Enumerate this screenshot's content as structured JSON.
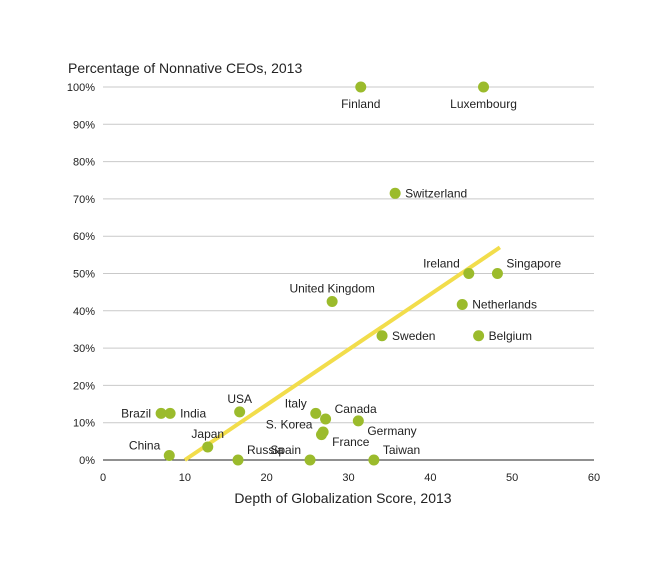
{
  "chart_data": {
    "type": "scatter",
    "title": "Percentage of Nonnative CEOs, 2013",
    "xlabel": "Depth of Globalization Score, 2013",
    "ylabel": "",
    "xlim": [
      0,
      60
    ],
    "ylim": [
      0,
      100
    ],
    "x_ticks": [
      0,
      10,
      20,
      30,
      40,
      50,
      60
    ],
    "y_ticks": [
      0,
      10,
      20,
      30,
      40,
      50,
      60,
      70,
      80,
      90,
      100
    ],
    "y_tick_labels": [
      "0%",
      "10%",
      "20%",
      "30%",
      "40%",
      "50%",
      "60%",
      "70%",
      "80%",
      "90%",
      "100%"
    ],
    "grid": "horizontal",
    "point_color": "#9bbb2c",
    "trend_color": "#f2dd4b",
    "trendline": {
      "x": [
        10,
        48.5
      ],
      "y": [
        0,
        57
      ]
    },
    "points": [
      {
        "label": "Finland",
        "x": 31.5,
        "y": 100,
        "pos": "below"
      },
      {
        "label": "Luxembourg",
        "x": 46.5,
        "y": 100,
        "pos": "below"
      },
      {
        "label": "Switzerland",
        "x": 35.7,
        "y": 71.5,
        "pos": "right"
      },
      {
        "label": "Ireland",
        "x": 44.7,
        "y": 50,
        "pos": "left-up"
      },
      {
        "label": "Singapore",
        "x": 48.2,
        "y": 50,
        "pos": "right-up"
      },
      {
        "label": "United Kingdom",
        "x": 28,
        "y": 42.5,
        "pos": "above"
      },
      {
        "label": "Netherlands",
        "x": 43.9,
        "y": 41.7,
        "pos": "right"
      },
      {
        "label": "Sweden",
        "x": 34.1,
        "y": 33.3,
        "pos": "right"
      },
      {
        "label": "Belgium",
        "x": 45.9,
        "y": 33.3,
        "pos": "right"
      },
      {
        "label": "Brazil",
        "x": 7.1,
        "y": 12.5,
        "pos": "left"
      },
      {
        "label": "India",
        "x": 8.2,
        "y": 12.5,
        "pos": "right"
      },
      {
        "label": "USA",
        "x": 16.7,
        "y": 12.9,
        "pos": "above"
      },
      {
        "label": "Italy",
        "x": 26,
        "y": 12.5,
        "pos": "left-up"
      },
      {
        "label": "Canada",
        "x": 27.2,
        "y": 11,
        "pos": "right-up"
      },
      {
        "label": "Germany",
        "x": 31.2,
        "y": 10.5,
        "pos": "right-down"
      },
      {
        "label": "S. Korea",
        "x": 26.7,
        "y": 6.8,
        "pos": "left-up"
      },
      {
        "label": "France",
        "x": 26.9,
        "y": 7.5,
        "pos": "right-down"
      },
      {
        "label": "China",
        "x": 8.1,
        "y": 1.2,
        "pos": "left-up"
      },
      {
        "label": "Japan",
        "x": 12.8,
        "y": 3.5,
        "pos": "above"
      },
      {
        "label": "Russia",
        "x": 16.5,
        "y": 0,
        "pos": "right-up"
      },
      {
        "label": "Spain",
        "x": 25.3,
        "y": 0,
        "pos": "left-up"
      },
      {
        "label": "Taiwan",
        "x": 33.1,
        "y": 0,
        "pos": "right-up"
      }
    ]
  }
}
